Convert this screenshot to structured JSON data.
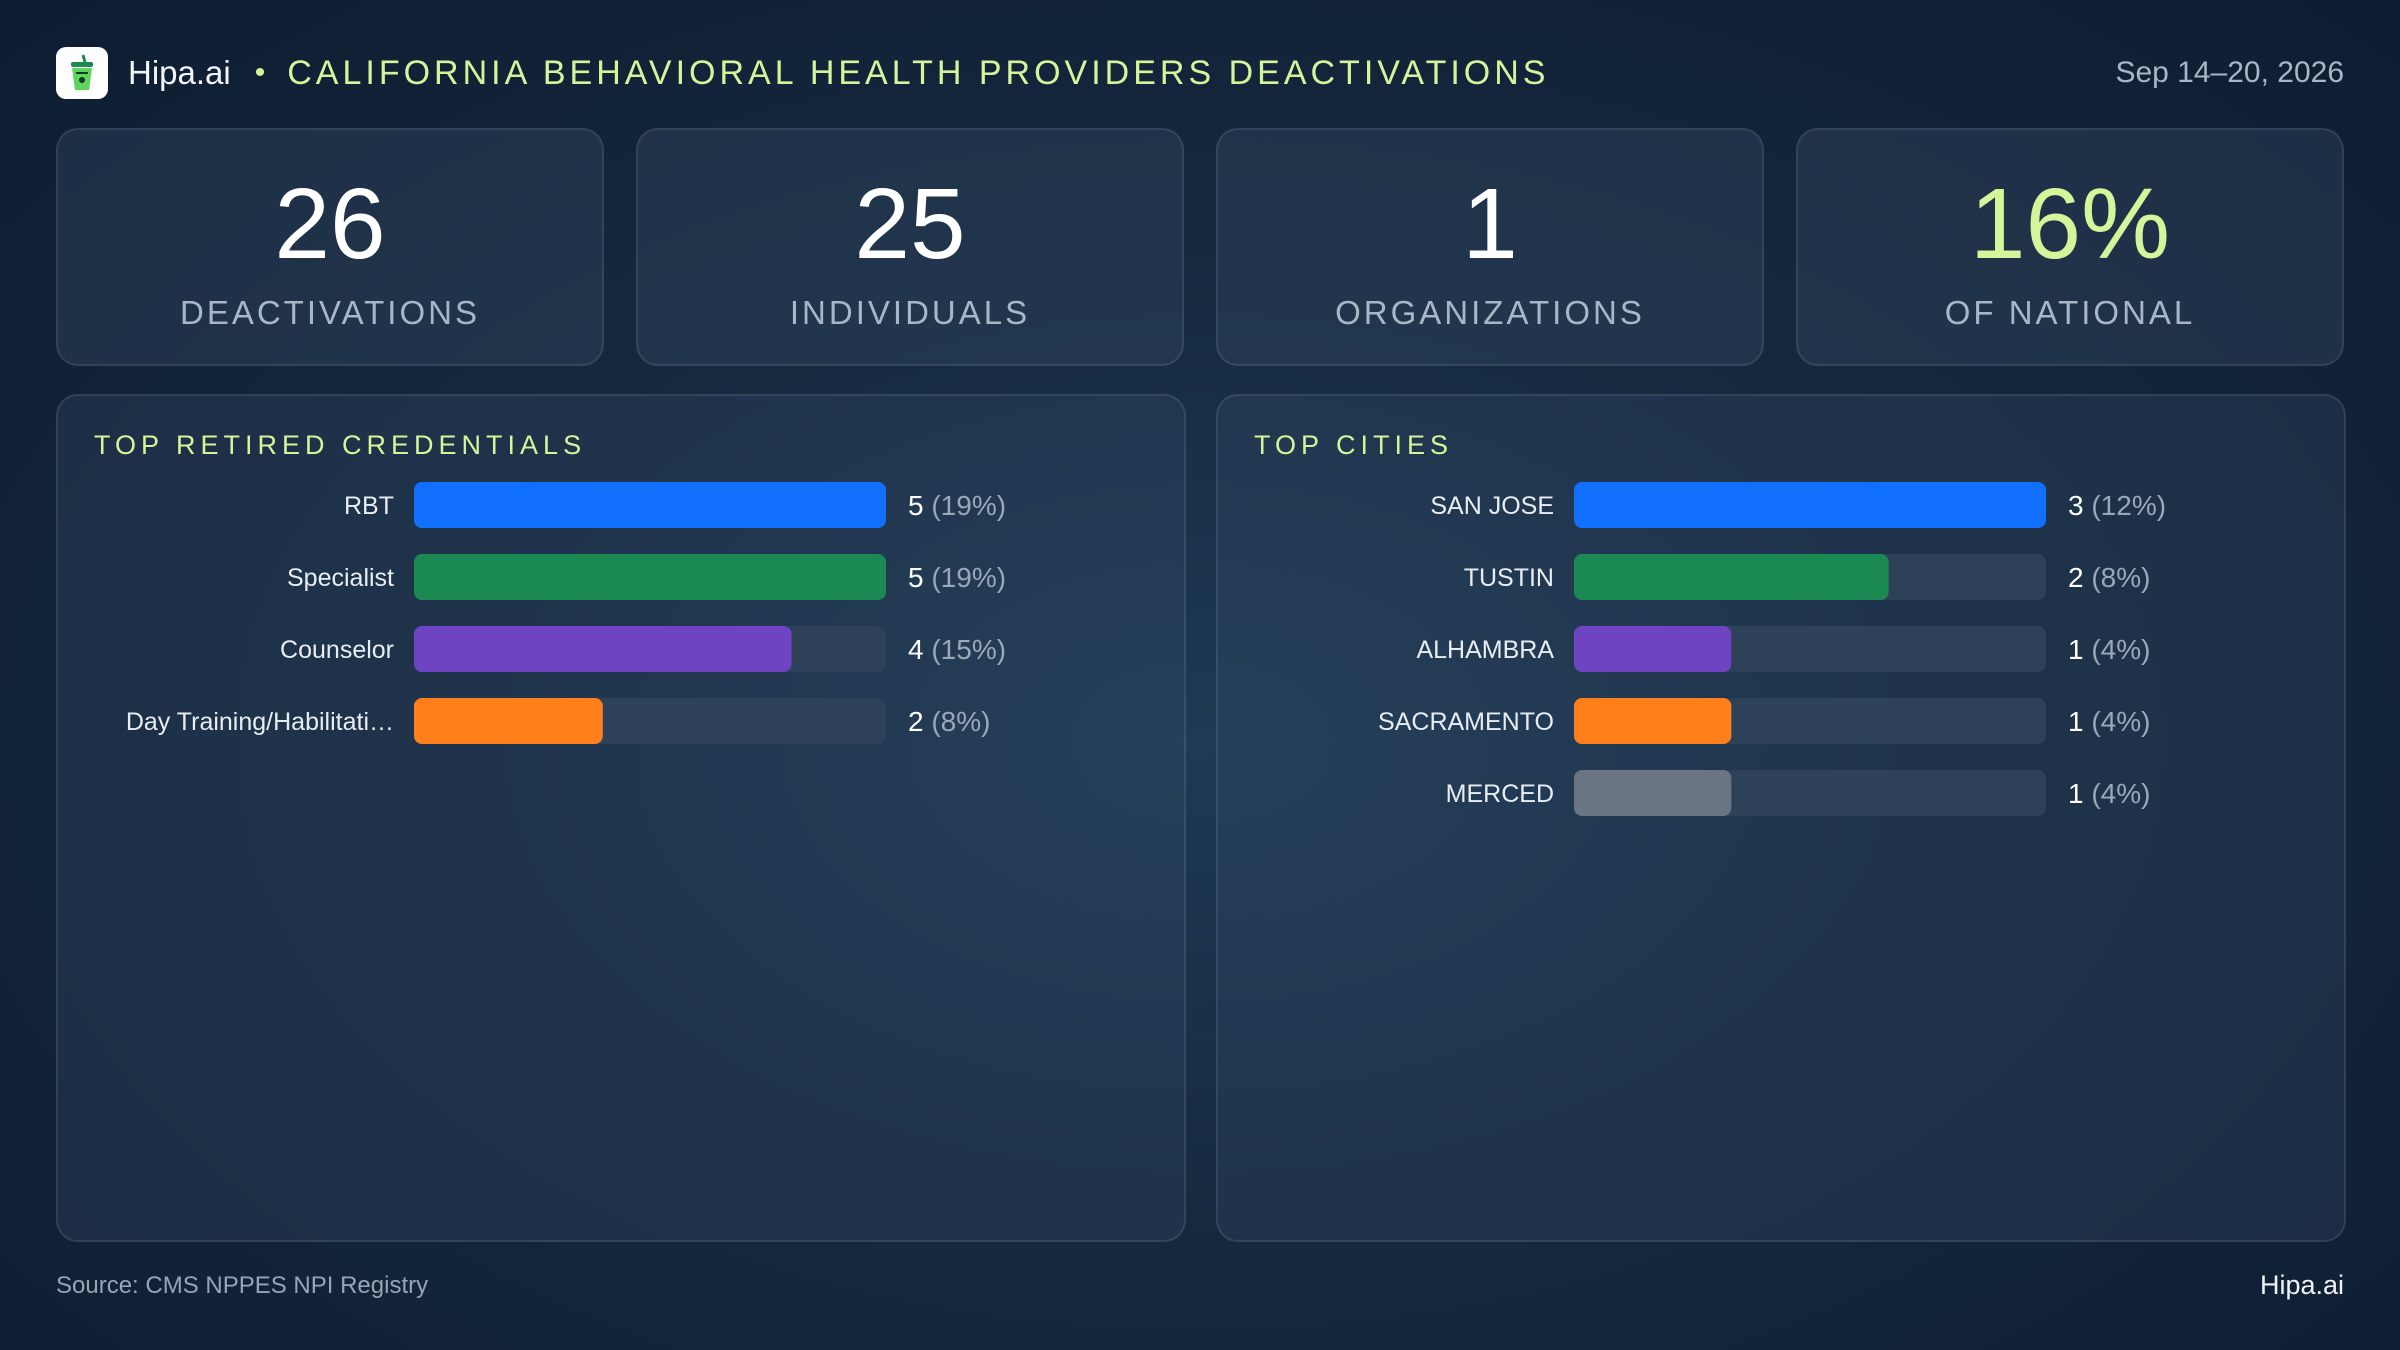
{
  "header": {
    "brand": "Hipa.ai",
    "separator": "•",
    "title": "CALIFORNIA BEHAVIORAL HEALTH PROVIDERS DEACTIVATIONS",
    "date_range": "Sep 14–20, 2026",
    "logo_icon": "cup-logo-icon"
  },
  "kpis": [
    {
      "value": "26",
      "label": "DEACTIVATIONS"
    },
    {
      "value": "25",
      "label": "INDIVIDUALS"
    },
    {
      "value": "1",
      "label": "ORGANIZATIONS"
    },
    {
      "value": "16%",
      "label": "OF NATIONAL"
    }
  ],
  "colors": {
    "accent": "#d4f59a",
    "blue": "#1170ff",
    "green": "#1b8a52",
    "purple": "#6e44c2",
    "orange": "#ff7f1a",
    "gray": "#6a7482",
    "track": "#2d4158"
  },
  "chart_data": [
    {
      "type": "bar",
      "title": "TOP RETIRED CREDENTIALS",
      "categories": [
        "RBT",
        "Specialist",
        "Counselor",
        "Day Training/Habilitati…"
      ],
      "values": [
        5,
        5,
        4,
        2
      ],
      "value_labels": [
        "5",
        "5",
        "4",
        "2"
      ],
      "percent_labels": [
        "(19%)",
        "(19%)",
        "(15%)",
        "(8%)"
      ],
      "bar_colors": [
        "#1170ff",
        "#1b8a52",
        "#6e44c2",
        "#ff7f1a"
      ],
      "xlim": [
        0,
        5
      ]
    },
    {
      "type": "bar",
      "title": "TOP CITIES",
      "categories": [
        "SAN JOSE",
        "TUSTIN",
        "ALHAMBRA",
        "SACRAMENTO",
        "MERCED"
      ],
      "values": [
        3,
        2,
        1,
        1,
        1
      ],
      "value_labels": [
        "3",
        "2",
        "1",
        "1",
        "1"
      ],
      "percent_labels": [
        "(12%)",
        "(8%)",
        "(4%)",
        "(4%)",
        "(4%)"
      ],
      "bar_colors": [
        "#1170ff",
        "#1b8a52",
        "#6e44c2",
        "#ff7f1a",
        "#6a7482"
      ],
      "xlim": [
        0,
        3
      ]
    }
  ],
  "footer": {
    "source": "Source: CMS NPPES NPI Registry",
    "brand": "Hipa.ai"
  }
}
